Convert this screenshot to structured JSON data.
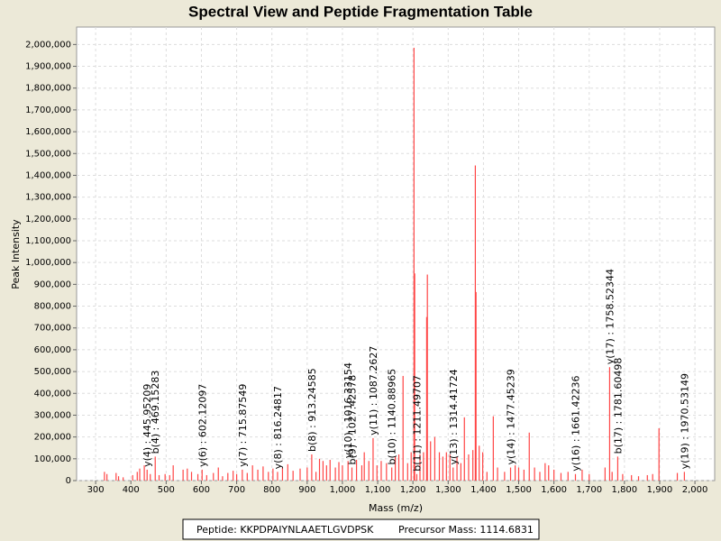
{
  "chart_data": {
    "type": "spectrum",
    "title": "Spectral View and Peptide Fragmentation Table",
    "xlabel": "Mass (m/z)",
    "ylabel": "Peak Intensity",
    "xlim": [
      246,
      2056
    ],
    "ylim": [
      0,
      2080000
    ],
    "grid": true,
    "xticks": [
      300,
      400,
      500,
      600,
      700,
      800,
      900,
      {
        "value": 1000,
        "label": "1,000"
      },
      {
        "value": 1100,
        "label": "1,100"
      },
      {
        "value": 1200,
        "label": "1,200"
      },
      {
        "value": 1300,
        "label": "1,300"
      },
      {
        "value": 1400,
        "label": "1,400"
      },
      {
        "value": 1500,
        "label": "1,500"
      },
      {
        "value": 1600,
        "label": "1,600"
      },
      {
        "value": 1700,
        "label": "1,700"
      },
      {
        "value": 1800,
        "label": "1,800"
      },
      {
        "value": 1900,
        "label": "1,900"
      },
      {
        "value": 2000,
        "label": "2,000"
      }
    ],
    "yticks": [
      0,
      {
        "value": 100000,
        "label": "100,000"
      },
      {
        "value": 200000,
        "label": "200,000"
      },
      {
        "value": 300000,
        "label": "300,000"
      },
      {
        "value": 400000,
        "label": "400,000"
      },
      {
        "value": 500000,
        "label": "500,000"
      },
      {
        "value": 600000,
        "label": "600,000"
      },
      {
        "value": 700000,
        "label": "700,000"
      },
      {
        "value": 800000,
        "label": "800,000"
      },
      {
        "value": 900000,
        "label": "900,000"
      },
      {
        "value": 1000000,
        "label": "1,000,000"
      },
      {
        "value": 1100000,
        "label": "1,100,000"
      },
      {
        "value": 1200000,
        "label": "1,200,000"
      },
      {
        "value": 1300000,
        "label": "1,300,000"
      },
      {
        "value": 1400000,
        "label": "1,400,000"
      },
      {
        "value": 1500000,
        "label": "1,500,000"
      },
      {
        "value": 1600000,
        "label": "1,600,000"
      },
      {
        "value": 1700000,
        "label": "1,700,000"
      },
      {
        "value": 1800000,
        "label": "1,800,000"
      },
      {
        "value": 1900000,
        "label": "1,900,000"
      },
      {
        "value": 2000000,
        "label": "2,000,000"
      }
    ],
    "color": "#ff4444",
    "x": [
      325,
      332,
      358,
      365,
      378,
      405,
      418,
      425,
      438,
      446,
      455,
      469,
      480,
      497,
      510,
      520,
      548,
      560,
      572,
      590,
      602,
      615,
      634,
      648,
      660,
      675,
      690,
      700,
      716,
      730,
      745,
      760,
      775,
      790,
      803,
      816,
      830,
      845,
      860,
      880,
      900,
      913,
      925,
      935,
      945,
      955,
      965,
      980,
      990,
      1000,
      1016,
      1027,
      1040,
      1055,
      1062,
      1075,
      1087,
      1098,
      1110,
      1125,
      1140,
      1150,
      1160,
      1172,
      1185,
      1195,
      1203,
      1205,
      1211,
      1220,
      1230,
      1239,
      1241,
      1250,
      1262,
      1275,
      1285,
      1295,
      1305,
      1314,
      1325,
      1336,
      1346,
      1358,
      1370,
      1377,
      1379,
      1388,
      1398,
      1410,
      1428,
      1440,
      1460,
      1477,
      1490,
      1500,
      1515,
      1530,
      1545,
      1560,
      1575,
      1585,
      1600,
      1620,
      1640,
      1661,
      1680,
      1700,
      1745,
      1758,
      1765,
      1781,
      1795,
      1820,
      1840,
      1865,
      1880,
      1898,
      1950,
      1970
    ],
    "values": [
      40000,
      30000,
      35000,
      20000,
      15000,
      25000,
      40000,
      55000,
      70000,
      50000,
      30000,
      110000,
      25000,
      30000,
      25000,
      70000,
      50000,
      55000,
      40000,
      30000,
      50000,
      25000,
      35000,
      60000,
      20000,
      35000,
      45000,
      30000,
      50000,
      35000,
      70000,
      50000,
      65000,
      40000,
      55000,
      40000,
      60000,
      75000,
      45000,
      55000,
      60000,
      120000,
      40000,
      100000,
      90000,
      70000,
      95000,
      60000,
      85000,
      70000,
      90000,
      60000,
      95000,
      70000,
      130000,
      90000,
      195000,
      70000,
      90000,
      80000,
      60000,
      110000,
      120000,
      480000,
      80000,
      130000,
      1985000,
      950000,
      30000,
      120000,
      130000,
      750000,
      945000,
      180000,
      200000,
      130000,
      110000,
      130000,
      120000,
      60000,
      110000,
      80000,
      290000,
      120000,
      140000,
      1445000,
      865000,
      160000,
      130000,
      40000,
      295000,
      60000,
      40000,
      60000,
      70000,
      60000,
      50000,
      220000,
      60000,
      40000,
      80000,
      70000,
      50000,
      35000,
      40000,
      30000,
      50000,
      30000,
      60000,
      520000,
      40000,
      110000,
      30000,
      25000,
      20000,
      25000,
      30000,
      240000,
      35000,
      40000
    ],
    "annotations": [
      {
        "label": "y(4) : 445.95209",
        "x": 446,
        "y": 50000
      },
      {
        "label": "b(4) : 469.15283",
        "x": 469,
        "y": 110000
      },
      {
        "label": "y(6) : 602.12097",
        "x": 602,
        "y": 50000
      },
      {
        "label": "y(7) : 715.87549",
        "x": 716,
        "y": 50000
      },
      {
        "label": "y(8) : 816.24817",
        "x": 816,
        "y": 40000
      },
      {
        "label": "b(8) : 913.24585",
        "x": 913,
        "y": 120000
      },
      {
        "label": "y(10) : 1016.33154",
        "x": 1016,
        "y": 90000
      },
      {
        "label": "b(9) : 1027.42578",
        "x": 1027,
        "y": 60000
      },
      {
        "label": "y(11) : 1087.2627",
        "x": 1087,
        "y": 195000
      },
      {
        "label": "b(10) : 1140.88965",
        "x": 1140,
        "y": 60000
      },
      {
        "label": "b(11) : 1211.49707",
        "x": 1211,
        "y": 30000
      },
      {
        "label": "y(13) : 1314.41724",
        "x": 1314,
        "y": 60000
      },
      {
        "label": "y(14) : 1477.45239",
        "x": 1477,
        "y": 60000
      },
      {
        "label": "y(16) : 1661.42236",
        "x": 1661,
        "y": 30000
      },
      {
        "label": "y(17) : 1758.52344",
        "x": 1758,
        "y": 520000
      },
      {
        "label": "b(17) : 1781.60498",
        "x": 1781,
        "y": 110000
      },
      {
        "label": "y(19) : 1970.53149",
        "x": 1970,
        "y": 40000
      }
    ]
  },
  "footer": {
    "peptide": "Peptide: KKPDPAIYNLAAETLGVDPSK",
    "precursor": "Precursor Mass: 1114.6831"
  }
}
